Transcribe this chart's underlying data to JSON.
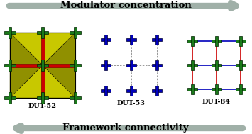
{
  "title_top": "Modulator concentration",
  "title_bottom": "Framework connectivity",
  "labels": [
    "DUT-52",
    "DUT-53",
    "DUT-84"
  ],
  "bg_color": "#ffffff",
  "arrow_color": "#a0b0a8",
  "title_fontsize": 9.5,
  "label_fontsize": 7,
  "dut52": {
    "node_color": "#1a7a1a",
    "yellow": "#c8c800",
    "olive": "#909000",
    "red": "#cc0000",
    "link_color": "#444444"
  },
  "dut53": {
    "node_color": "#0000bb",
    "link_color": "#888888"
  },
  "dut84": {
    "node_color": "#1a7a1a",
    "link_blue": "#0000bb",
    "link_red": "#cc0000"
  }
}
